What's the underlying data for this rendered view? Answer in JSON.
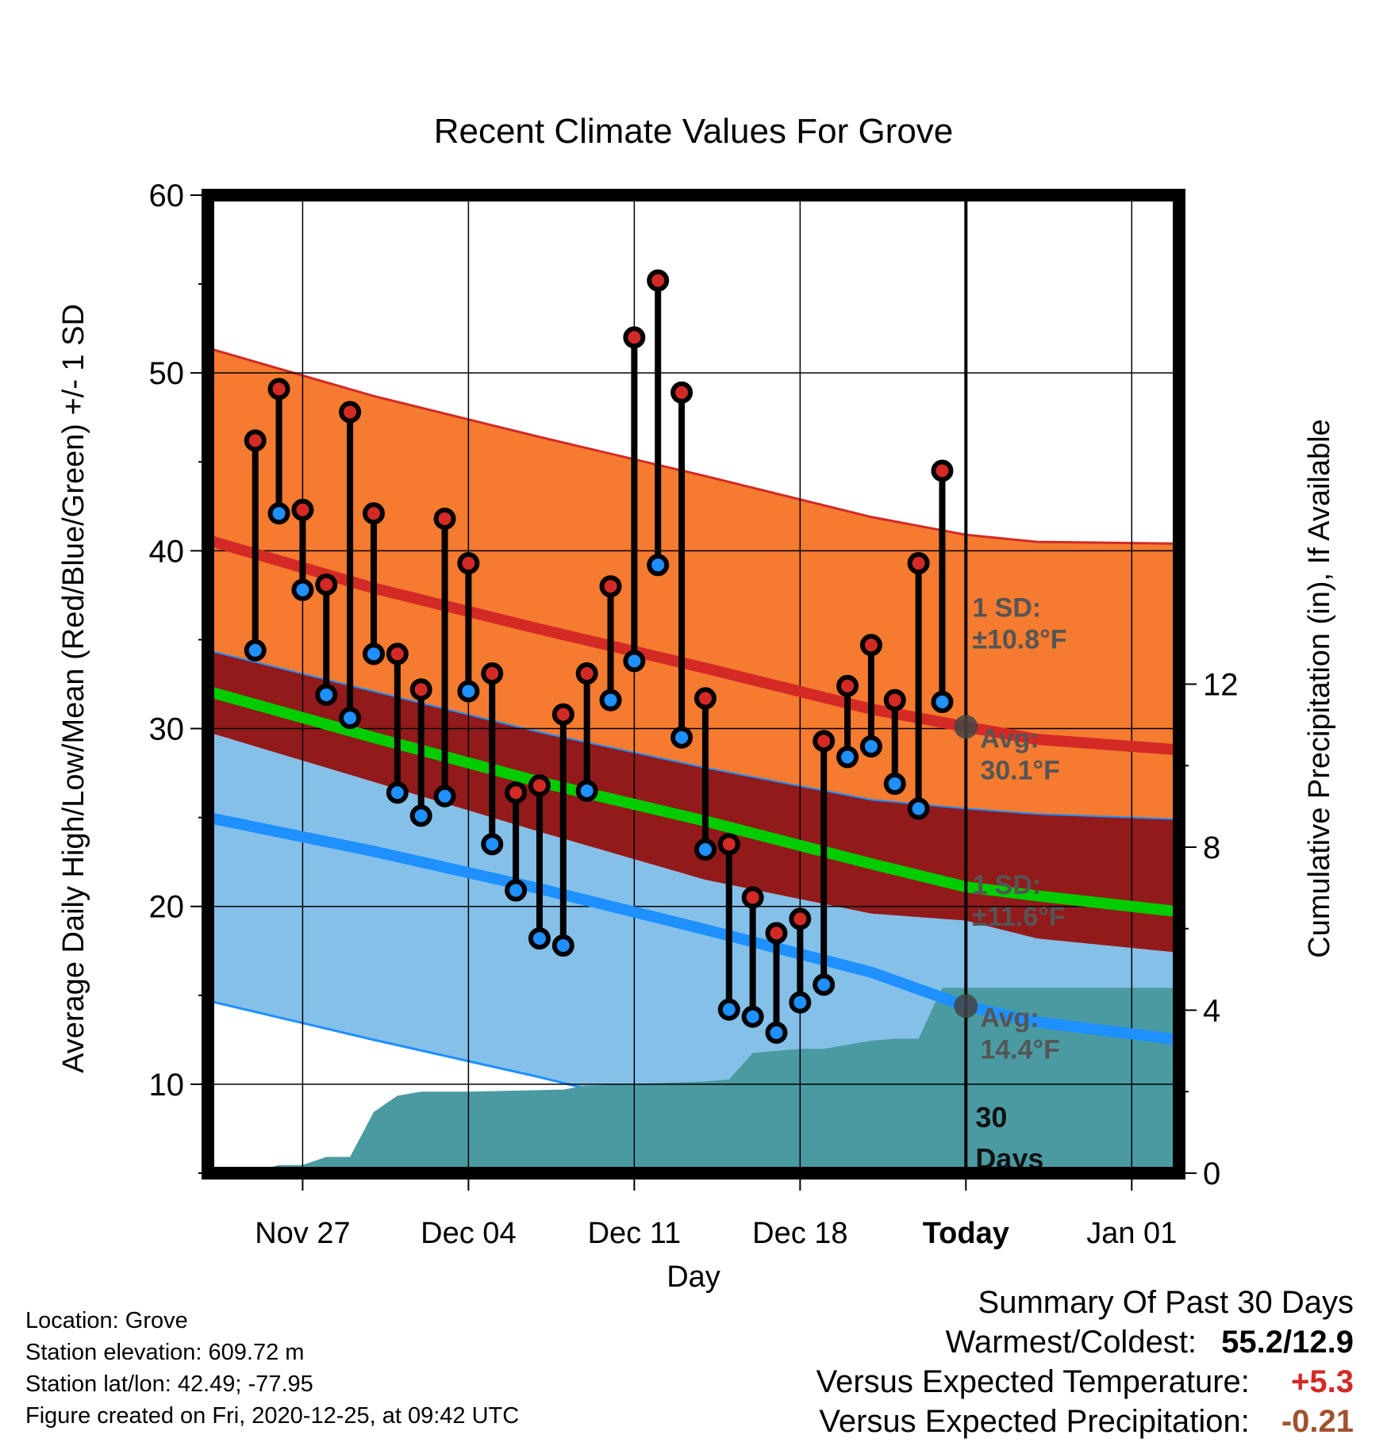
{
  "chart_data": {
    "type": "line",
    "title": "Recent Climate Values For Grove",
    "xlabel": "Day",
    "ylabel": "Average Daily High/Low/Mean (Red/Blue/Green) +/- 1 SD",
    "y2label": "Cumulative Precipitation (in), If Available",
    "ylim": [
      5,
      60
    ],
    "y2lim": [
      0,
      24
    ],
    "yticks": [
      10,
      20,
      30,
      40,
      50,
      60
    ],
    "y2ticks": [
      0,
      4,
      8,
      12
    ],
    "xlim": [
      "2020-11-23",
      "2021-01-03"
    ],
    "xticks": [
      {
        "date": "2020-11-27",
        "label": "Nov 27"
      },
      {
        "date": "2020-12-04",
        "label": "Dec 04"
      },
      {
        "date": "2020-12-11",
        "label": "Dec 11"
      },
      {
        "date": "2020-12-18",
        "label": "Dec 18"
      },
      {
        "date": "2020-12-25",
        "label": "Today"
      },
      {
        "date": "2021-01-01",
        "label": "Jan 01"
      }
    ],
    "grid": true,
    "today": "2020-12-25",
    "today_label": [
      "30",
      "Days"
    ],
    "observed": [
      {
        "date": "2020-11-25",
        "high": 46.2,
        "low": 34.4
      },
      {
        "date": "2020-11-26",
        "high": 49.1,
        "low": 42.1
      },
      {
        "date": "2020-11-27",
        "high": 42.3,
        "low": 37.8
      },
      {
        "date": "2020-11-28",
        "high": 38.1,
        "low": 31.9
      },
      {
        "date": "2020-11-29",
        "high": 47.8,
        "low": 30.6
      },
      {
        "date": "2020-11-30",
        "high": 42.1,
        "low": 34.2
      },
      {
        "date": "2020-12-01",
        "high": 34.2,
        "low": 26.4
      },
      {
        "date": "2020-12-02",
        "high": 32.2,
        "low": 25.1
      },
      {
        "date": "2020-12-03",
        "high": 41.8,
        "low": 26.2
      },
      {
        "date": "2020-12-04",
        "high": 39.3,
        "low": 32.1
      },
      {
        "date": "2020-12-05",
        "high": 33.1,
        "low": 23.5
      },
      {
        "date": "2020-12-06",
        "high": 26.4,
        "low": 20.9
      },
      {
        "date": "2020-12-07",
        "high": 26.8,
        "low": 18.2
      },
      {
        "date": "2020-12-08",
        "high": 30.8,
        "low": 17.8
      },
      {
        "date": "2020-12-09",
        "high": 33.1,
        "low": 26.5
      },
      {
        "date": "2020-12-10",
        "high": 38.0,
        "low": 31.6
      },
      {
        "date": "2020-12-11",
        "high": 52.0,
        "low": 33.8
      },
      {
        "date": "2020-12-12",
        "high": 55.2,
        "low": 39.2
      },
      {
        "date": "2020-12-13",
        "high": 48.9,
        "low": 29.5
      },
      {
        "date": "2020-12-14",
        "high": 31.7,
        "low": 23.2
      },
      {
        "date": "2020-12-15",
        "high": 23.5,
        "low": 14.2
      },
      {
        "date": "2020-12-16",
        "high": 20.5,
        "low": 13.8
      },
      {
        "date": "2020-12-17",
        "high": 18.5,
        "low": 12.9
      },
      {
        "date": "2020-12-18",
        "high": 19.3,
        "low": 14.6
      },
      {
        "date": "2020-12-19",
        "high": 29.3,
        "low": 15.6
      },
      {
        "date": "2020-12-20",
        "high": 32.4,
        "low": 28.4
      },
      {
        "date": "2020-12-21",
        "high": 34.7,
        "low": 29.0
      },
      {
        "date": "2020-12-22",
        "high": 31.6,
        "low": 26.9
      },
      {
        "date": "2020-12-23",
        "high": 39.3,
        "low": 25.5
      },
      {
        "date": "2020-12-24",
        "high": 44.5,
        "low": 31.5
      }
    ],
    "normals": {
      "dates": [
        "2020-11-23",
        "2020-11-30",
        "2020-12-07",
        "2020-12-14",
        "2020-12-21",
        "2020-12-25",
        "2020-12-28",
        "2021-01-03"
      ],
      "high_mean": [
        40.6,
        37.9,
        35.6,
        33.4,
        31.1,
        30.1,
        29.4,
        28.8
      ],
      "high_upper": [
        51.4,
        48.7,
        46.4,
        44.2,
        41.9,
        40.9,
        40.5,
        40.4
      ],
      "high_lower": [
        34.4,
        32.1,
        29.8,
        27.8,
        26.0,
        25.5,
        25.2,
        24.9
      ],
      "low_mean": [
        25.0,
        23.1,
        21.0,
        18.7,
        16.3,
        14.4,
        13.5,
        12.5
      ],
      "low_upper": [
        29.8,
        27.0,
        24.2,
        21.5,
        19.6,
        19.2,
        18.2,
        17.4
      ],
      "low_lower": [
        14.7,
        12.5,
        10.4,
        8.1,
        5.8,
        4.5,
        3.5,
        1.5
      ],
      "avg_mean": [
        32.1,
        29.5,
        27.0,
        24.8,
        22.4,
        21.1,
        20.6,
        19.7
      ]
    },
    "precip": {
      "dates": [
        "2020-11-23",
        "2020-11-24",
        "2020-11-25",
        "2020-11-26",
        "2020-11-27",
        "2020-11-28",
        "2020-11-29",
        "2020-11-30",
        "2020-12-01",
        "2020-12-02",
        "2020-12-04",
        "2020-12-08",
        "2020-12-09",
        "2020-12-14",
        "2020-12-15",
        "2020-12-16",
        "2020-12-18",
        "2020-12-19",
        "2020-12-21",
        "2020-12-22",
        "2020-12-23",
        "2020-12-24",
        "2020-12-25",
        "2021-01-03"
      ],
      "values": [
        0,
        0,
        0.05,
        0.2,
        0.2,
        0.4,
        0.4,
        1.5,
        1.9,
        2.0,
        2.0,
        2.05,
        2.15,
        2.25,
        2.3,
        2.95,
        3.05,
        3.05,
        3.25,
        3.3,
        3.3,
        4.55,
        4.55,
        4.55
      ]
    },
    "annotations": [
      {
        "line1": "1 SD:",
        "line2": "±10.8°F",
        "x": "2020-12-25",
        "y": 34.6
      },
      {
        "line1": "Avg:",
        "line2": "30.1°F",
        "x": "2020-12-25",
        "y": 30.1
      },
      {
        "line1": "1 SD:",
        "line2": "±11.6°F",
        "x": "2020-12-25",
        "y": 19.0
      },
      {
        "line1": "Avg:",
        "line2": "14.4°F",
        "x": "2020-12-25",
        "y": 14.4
      }
    ],
    "colors": {
      "high_band": "#f47b2f",
      "mid_band": "#921a1b",
      "low_band": "#85c0e8",
      "high_line": "#d42a26",
      "low_line": "#1e90ff",
      "avg_line": "#00cc00",
      "precip": "#4a9aa2",
      "high_marker": "#d42a26",
      "low_marker": "#1e90ff",
      "annotation": "#555555"
    }
  },
  "station": {
    "location": "Location: Grove",
    "elevation": "Station elevation: 609.72 m",
    "latlon": "Station lat/lon: 42.49; -77.95",
    "created": "Figure created on Fri, 2020-12-25, at 09:42 UTC"
  },
  "summary": {
    "title": "Summary Of Past 30 Days",
    "warmest_label": "Warmest/Coldest:",
    "warmest_value": "55.2/12.9",
    "temp_label": "Versus Expected Temperature:",
    "temp_value": "+5.3",
    "temp_color": "#d42a26",
    "precip_label": "Versus Expected Precipitation:",
    "precip_value": "-0.21",
    "precip_color": "#a0522d"
  }
}
